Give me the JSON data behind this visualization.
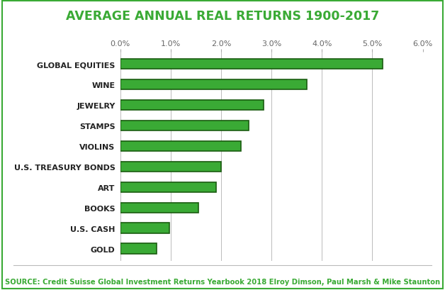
{
  "title": "AVERAGE ANNUAL REAL RETURNS 1900-2017",
  "categories": [
    "GOLD",
    "U.S. CASH",
    "BOOKS",
    "ART",
    "U.S. TREASURY BONDS",
    "VIOLINS",
    "STAMPS",
    "JEWELRY",
    "WINE",
    "GLOBAL EQUITIES"
  ],
  "values": [
    0.72,
    0.97,
    1.55,
    1.9,
    2.0,
    2.4,
    2.55,
    2.85,
    3.7,
    5.2
  ],
  "bar_color": "#3aaa35",
  "bar_edge_color": "#1a5c10",
  "background_color": "#ffffff",
  "title_color": "#3aaa35",
  "source_text": "SOURCE: Credit Suisse Global Investment Returns Yearbook 2018 Elroy Dimson, Paul Marsh & Mike Staunton",
  "source_color": "#3aaa35",
  "xlim": [
    0,
    6.0
  ],
  "xticks": [
    0.0,
    1.0,
    2.0,
    3.0,
    4.0,
    5.0,
    6.0
  ],
  "xtick_labels": [
    "0.0%",
    "1.0%",
    "2.0%",
    "3.0%",
    "4.0%",
    "5.0%",
    "6.0%"
  ],
  "grid_color": "#bbbbbb",
  "label_fontsize": 8.0,
  "title_fontsize": 12.5,
  "source_fontsize": 7.2,
  "tick_fontsize": 8.0,
  "outer_border_color": "#3aaa35",
  "bar_height": 0.5
}
